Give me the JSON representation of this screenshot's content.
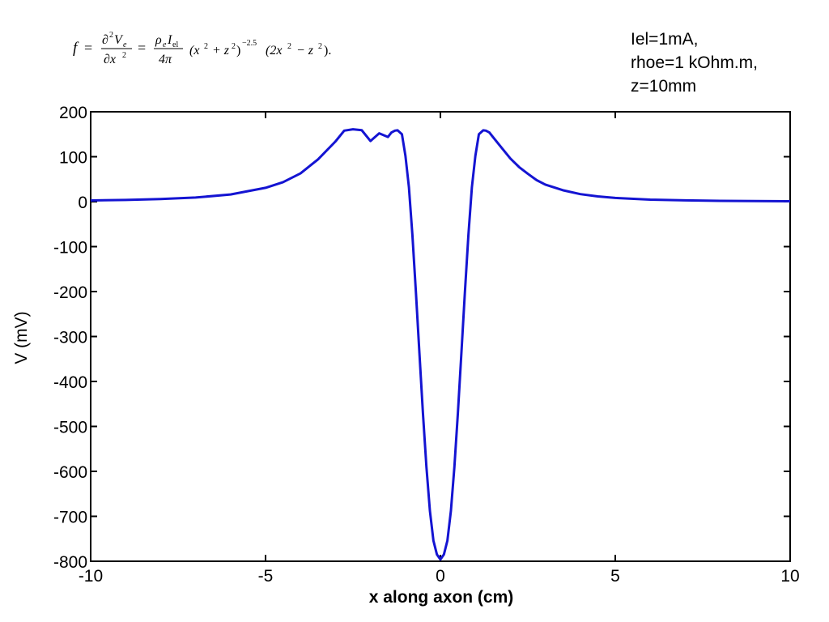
{
  "equation": {
    "f": "f",
    "eq": "=",
    "d2": "∂",
    "two": "2",
    "V": "V",
    "e_sub": "e",
    "dx": "∂x",
    "rho": "ρ",
    "I": "I",
    "el_sub": "el",
    "four_pi": "4π",
    "x2z2": "(x",
    "plus_z": "+ z",
    "close": ")",
    "exp": "−2.5",
    "tail_open": "(2x",
    "minus_z": "− z",
    "tail_close": ").",
    "sq": "2"
  },
  "params": [
    "Iel=1mA,",
    "rhoe=1 kOhm.m,",
    "z=10mm"
  ],
  "chart_data": {
    "type": "line",
    "title": "",
    "xlabel": "x along axon (cm)",
    "ylabel": "V (mV)",
    "xlim": [
      -10,
      10
    ],
    "ylim": [
      -800,
      200
    ],
    "xticks": [
      -10,
      -5,
      0,
      5,
      10
    ],
    "yticks": [
      200,
      100,
      0,
      -100,
      -200,
      -300,
      -400,
      -500,
      -600,
      -700,
      -800
    ],
    "grid": false,
    "legend": "none",
    "line_color": "#1414d2",
    "series": [
      {
        "name": "",
        "x": [
          -10,
          -9,
          -8,
          -7,
          -6,
          -5,
          -4.5,
          -4,
          -3.5,
          -3,
          -2.75,
          -2.5,
          -2.25,
          -2,
          -1.75,
          -1.5,
          -1.4,
          -1.3,
          -1.2247,
          -1.1,
          -1.0,
          -0.9,
          -0.8,
          -0.7,
          -0.6,
          -0.5,
          -0.4,
          -0.3,
          -0.2,
          -0.1,
          0,
          0.1,
          0.2,
          0.3,
          0.4,
          0.5,
          0.6,
          0.7,
          0.8,
          0.9,
          1.0,
          1.1,
          1.2247,
          1.3,
          1.4,
          1.5,
          1.75,
          2,
          2.25,
          2.5,
          2.75,
          3,
          3.5,
          4,
          4.5,
          5,
          6,
          7,
          8,
          9,
          10
        ],
        "y": [
          2.8,
          3.9,
          5.8,
          9.2,
          16,
          30.8,
          43.4,
          63,
          94.1,
          134,
          158,
          161,
          159,
          135,
          152,
          144,
          154,
          158,
          158.7,
          150,
          102,
          32,
          -75,
          -202,
          -337,
          -470,
          -590,
          -688,
          -754,
          -785,
          -796,
          -785,
          -754,
          -688,
          -590,
          -470,
          -337,
          -202,
          -75,
          32,
          102,
          150,
          158.7,
          158,
          154,
          144,
          120,
          96,
          77,
          62,
          48,
          38,
          25.5,
          16.8,
          11.8,
          8.3,
          4.6,
          3.0,
          1.9,
          1.3,
          0.9
        ]
      }
    ]
  }
}
